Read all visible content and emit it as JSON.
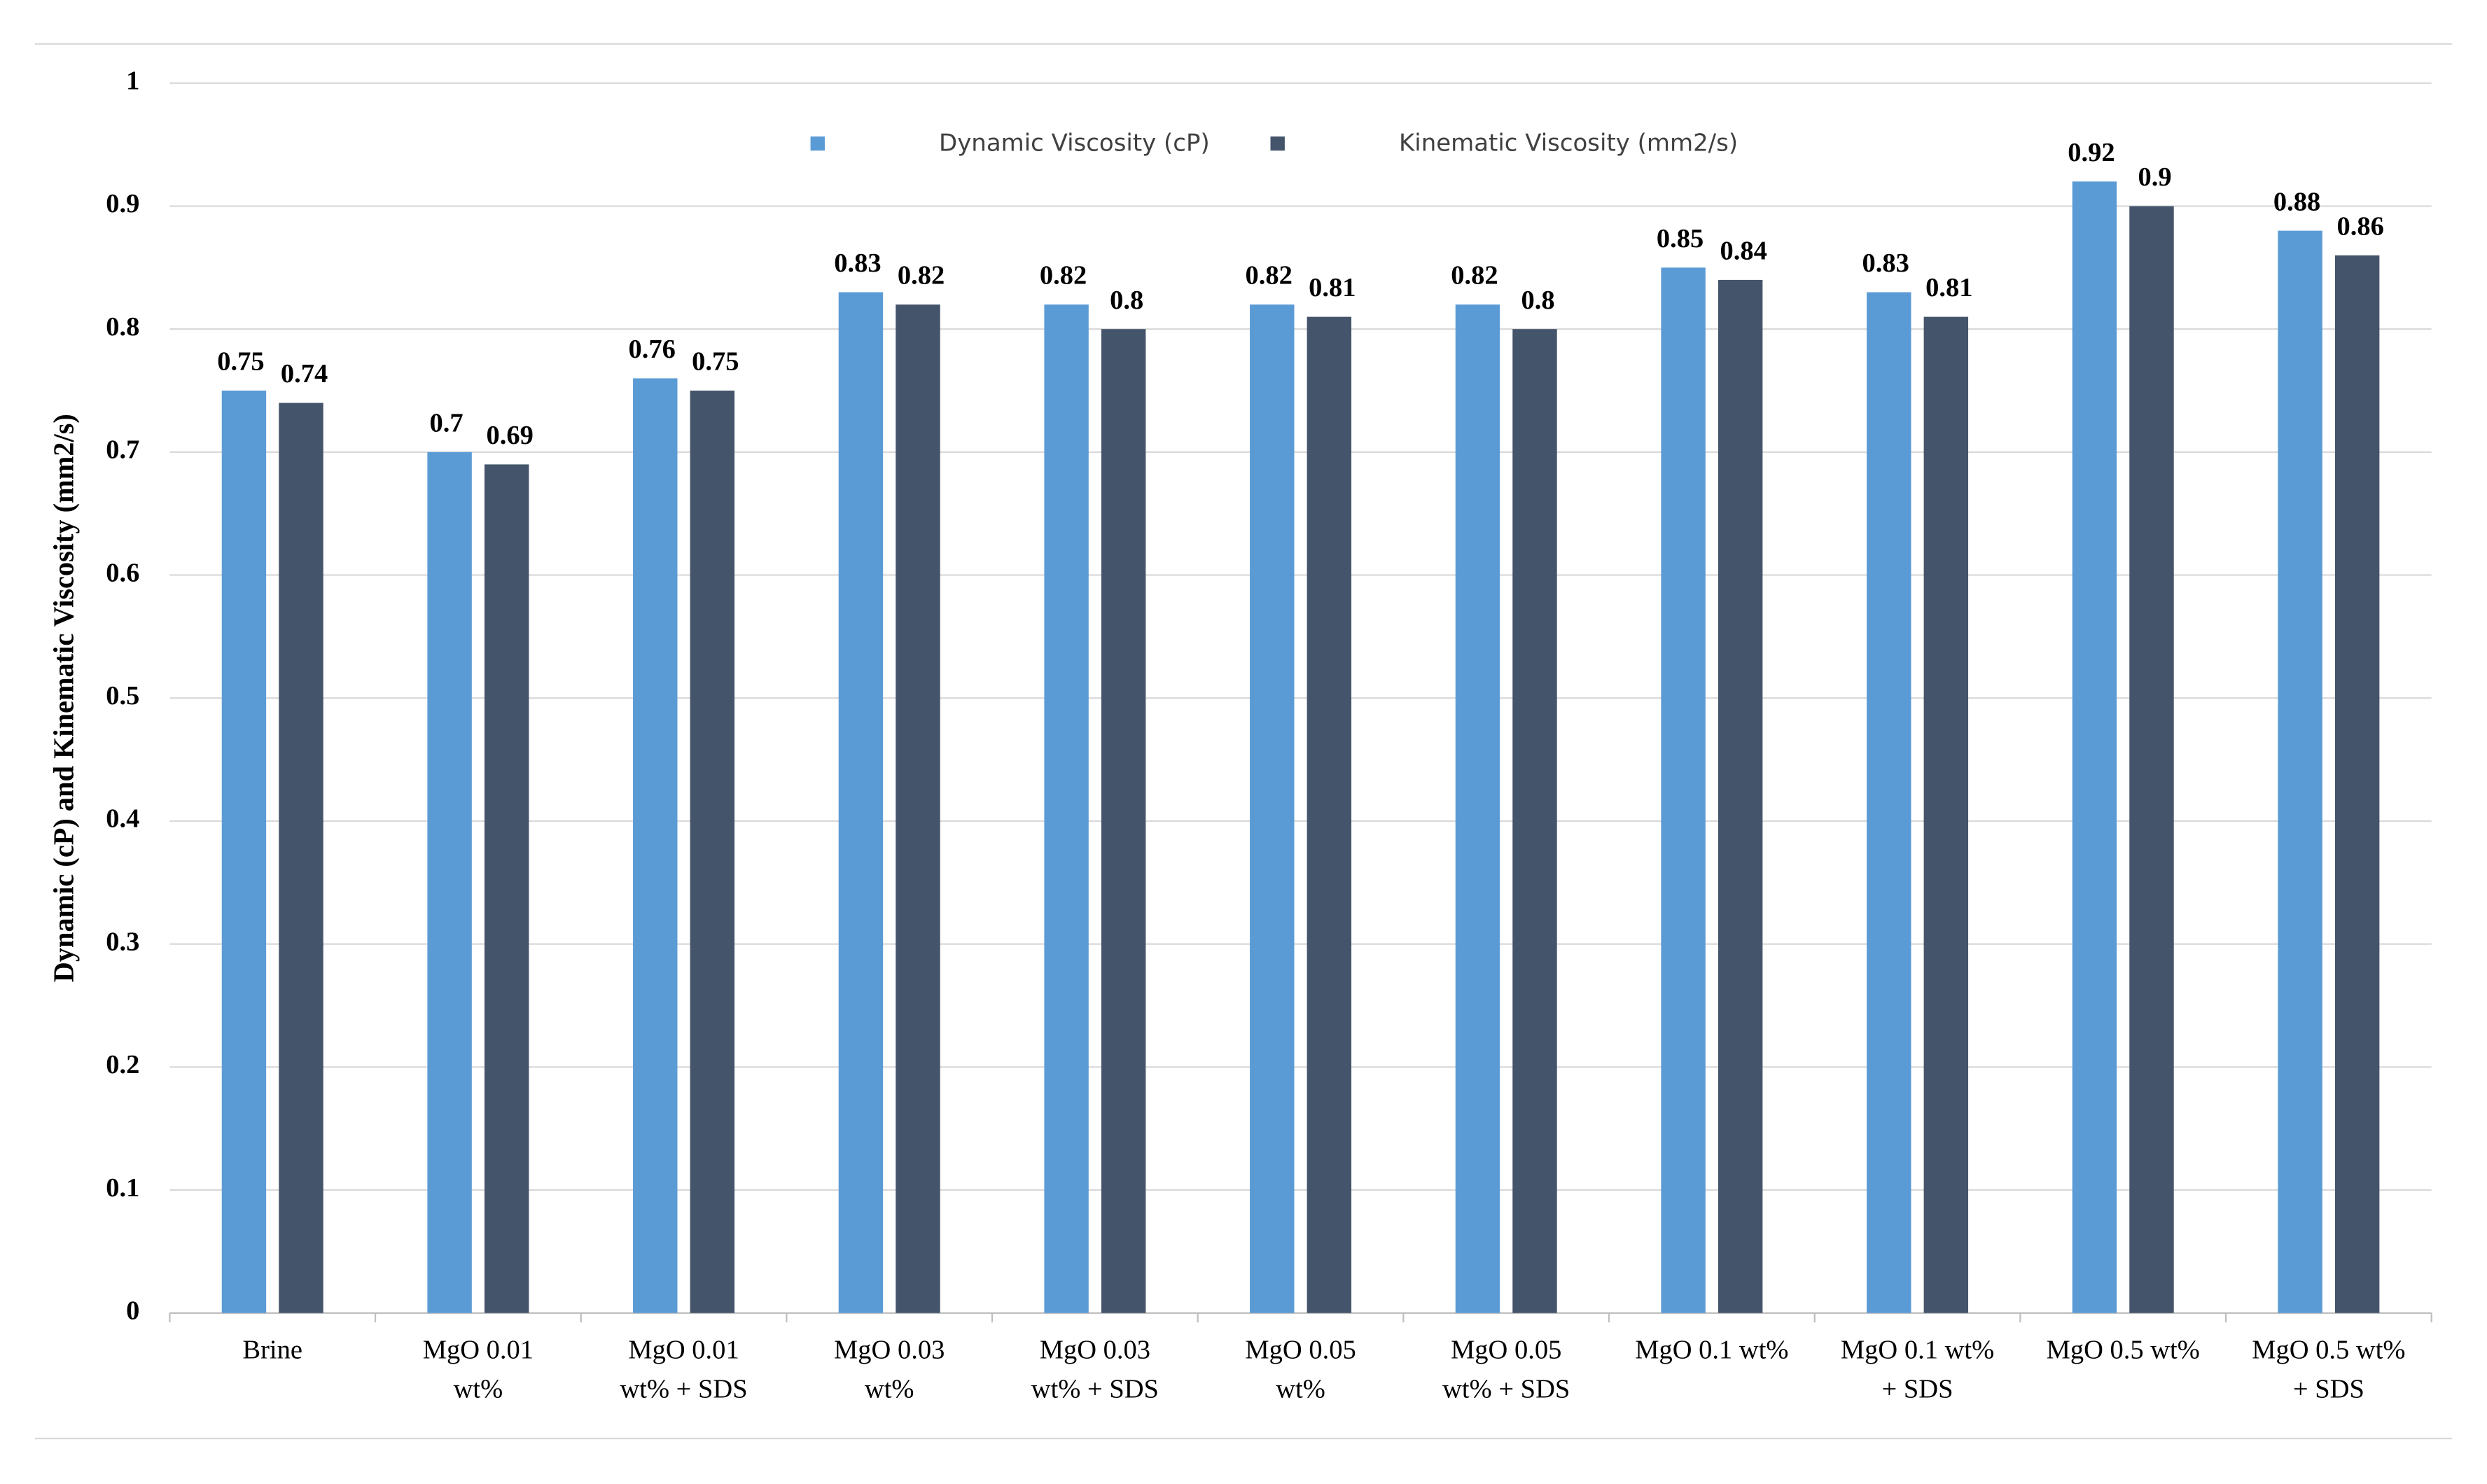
{
  "chart_data": {
    "type": "bar",
    "y_label": "Dynamic (cP) and Kinematic Viscosity (mm2/s)",
    "categories": [
      "Brine",
      "MgO 0.01 wt%",
      "MgO 0.01 wt% + SDS",
      "MgO 0.03 wt%",
      "MgO 0.03 wt% + SDS",
      "MgO 0.05 wt%",
      "MgO 0.05 wt% + SDS",
      "MgO 0.1 wt%",
      "MgO 0.1 wt% + SDS",
      "MgO 0.5 wt%",
      "MgO 0.5 wt% + SDS"
    ],
    "series": [
      {
        "name": "Dynamic Viscosity (cP)",
        "color": "#5b9bd5",
        "values": [
          0.75,
          0.7,
          0.76,
          0.83,
          0.82,
          0.82,
          0.82,
          0.85,
          0.83,
          0.92,
          0.88
        ]
      },
      {
        "name": "Kinematic Viscosity (mm2/s)",
        "color": "#44546a",
        "values": [
          0.74,
          0.69,
          0.75,
          0.82,
          0.8,
          0.81,
          0.8,
          0.84,
          0.81,
          0.9,
          0.86
        ]
      }
    ],
    "ylim": [
      0,
      1
    ],
    "yticks": [
      0,
      0.1,
      0.2,
      0.3,
      0.4,
      0.5,
      0.6,
      0.7,
      0.8,
      0.9,
      1
    ],
    "grid": true,
    "legend": "top"
  }
}
